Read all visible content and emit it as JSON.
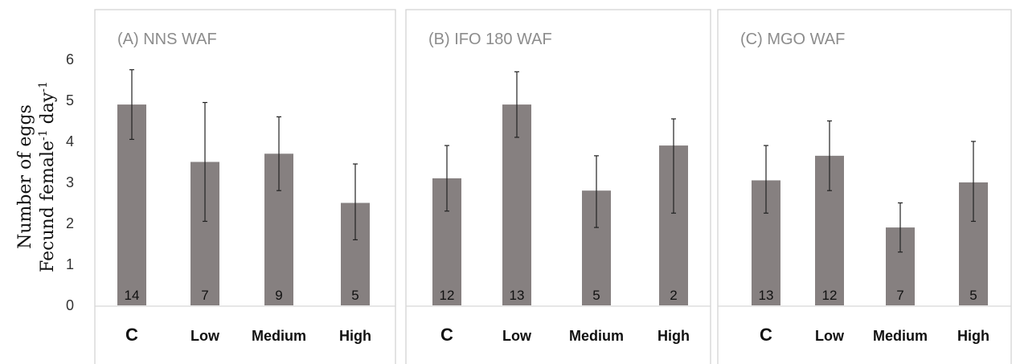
{
  "ylabel": {
    "line1": "Number of eggs",
    "line2_prefix": "Fecund female",
    "line2_sup1": "-1",
    "line2_mid": " day",
    "line2_sup2": "-1"
  },
  "y_ticks": [
    "0",
    "1",
    "2",
    "3",
    "4",
    "5",
    "6"
  ],
  "colors": {
    "bar": "#868080",
    "frame": "#d0d0d0",
    "error": "#222222",
    "title": "#8c8c8c"
  },
  "chart_data": [
    {
      "type": "bar",
      "title": "(A) NNS WAF",
      "categories": [
        "C",
        "Low",
        "Medium",
        "High"
      ],
      "values": [
        4.9,
        3.5,
        3.7,
        2.5
      ],
      "error_low": [
        4.05,
        2.05,
        2.8,
        1.6
      ],
      "error_high": [
        5.75,
        4.95,
        4.6,
        3.45
      ],
      "n_labels": [
        "14",
        "7",
        "9",
        "5"
      ],
      "ylabel": "Number of eggs Fecund female-1 day-1",
      "ylim": [
        0,
        6
      ],
      "grid": false
    },
    {
      "type": "bar",
      "title": "(B) IFO 180 WAF",
      "categories": [
        "C",
        "Low",
        "Medium",
        "High"
      ],
      "values": [
        3.1,
        4.9,
        2.8,
        3.9
      ],
      "error_low": [
        2.3,
        4.1,
        1.9,
        2.25
      ],
      "error_high": [
        3.9,
        5.7,
        3.65,
        4.55
      ],
      "n_labels": [
        "12",
        "13",
        "5",
        "2"
      ],
      "ylim": [
        0,
        6
      ],
      "grid": false
    },
    {
      "type": "bar",
      "title": "(C) MGO WAF",
      "categories": [
        "C",
        "Low",
        "Medium",
        "High"
      ],
      "values": [
        3.05,
        3.65,
        1.9,
        3.0
      ],
      "error_low": [
        2.25,
        2.8,
        1.3,
        2.05
      ],
      "error_high": [
        3.9,
        4.5,
        2.5,
        4.0
      ],
      "n_labels": [
        "13",
        "12",
        "7",
        "5"
      ],
      "ylim": [
        0,
        6
      ],
      "grid": false
    }
  ]
}
